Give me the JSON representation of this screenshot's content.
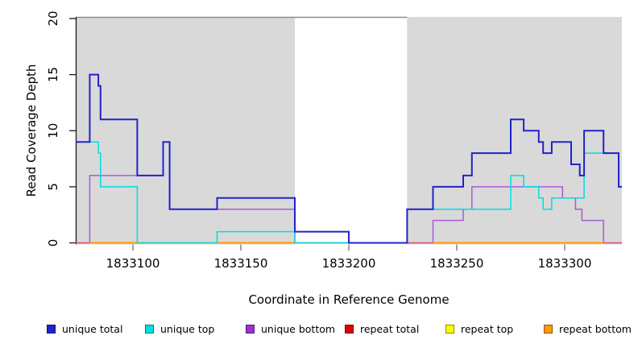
{
  "chart_data": {
    "type": "line",
    "subtype": "step-coverage",
    "title": "",
    "xlabel": "Coordinate in Reference Genome",
    "ylabel": "Read Coverage Depth",
    "x_range": [
      1833073.5,
      1833326.5
    ],
    "y_range": [
      0,
      20
    ],
    "x_ticks": [
      1833100,
      1833150,
      1833200,
      1833250,
      1833300
    ],
    "y_ticks": [
      0,
      5,
      10,
      15,
      20
    ],
    "grid": "off",
    "plot_background": "#ffffff",
    "shaded_regions": [
      {
        "from": 1833073.5,
        "to": 1833175,
        "color": "#d9d9d9"
      },
      {
        "from": 1833227,
        "to": 1833326.5,
        "color": "#d9d9d9"
      }
    ],
    "top_rule": {
      "from": 1833073.5,
      "to": 1833227,
      "color": "#8c8c8c"
    },
    "legend_position": "bottom",
    "draw_order": [
      "unique bottom",
      "repeat top",
      "repeat total",
      "repeat bottom",
      "unique top",
      "unique total"
    ],
    "series": [
      {
        "name": "unique total",
        "color": "#2222cc",
        "steps": [
          [
            1833073.5,
            9
          ],
          [
            1833080,
            15
          ],
          [
            1833084,
            14
          ],
          [
            1833085,
            11
          ],
          [
            1833102,
            6
          ],
          [
            1833114,
            9
          ],
          [
            1833117,
            3
          ],
          [
            1833139,
            4
          ],
          [
            1833175,
            1
          ],
          [
            1833200,
            0
          ],
          [
            1833227,
            3
          ],
          [
            1833239,
            5
          ],
          [
            1833253,
            6
          ],
          [
            1833257,
            8
          ],
          [
            1833275,
            11
          ],
          [
            1833281,
            10
          ],
          [
            1833288,
            9
          ],
          [
            1833290,
            8
          ],
          [
            1833294,
            9
          ],
          [
            1833303,
            7
          ],
          [
            1833307,
            6
          ],
          [
            1833309,
            10
          ],
          [
            1833318,
            8
          ],
          [
            1833325,
            5
          ]
        ]
      },
      {
        "name": "unique top",
        "color": "#00dde0",
        "steps": [
          [
            1833073.5,
            9
          ],
          [
            1833084,
            8
          ],
          [
            1833085,
            5
          ],
          [
            1833102,
            0
          ],
          [
            1833139,
            1
          ],
          [
            1833175,
            0
          ],
          [
            1833227,
            3
          ],
          [
            1833275,
            6
          ],
          [
            1833281,
            5
          ],
          [
            1833288,
            4
          ],
          [
            1833290,
            3
          ],
          [
            1833294,
            4
          ],
          [
            1833309,
            8
          ],
          [
            1833325,
            5
          ]
        ]
      },
      {
        "name": "unique bottom",
        "color": "#a85ad6",
        "legend_color": "#9933cc",
        "steps": [
          [
            1833073.5,
            0
          ],
          [
            1833080,
            6
          ],
          [
            1833114,
            9
          ],
          [
            1833117,
            3
          ],
          [
            1833175,
            0
          ],
          [
            1833239,
            2
          ],
          [
            1833253,
            3
          ],
          [
            1833257,
            5
          ],
          [
            1833299,
            4
          ],
          [
            1833305,
            3
          ],
          [
            1833308,
            2
          ],
          [
            1833318,
            0
          ]
        ]
      },
      {
        "name": "repeat total",
        "color": "#d4537c",
        "legend_color": "#dd0000",
        "steps": [
          [
            1833073.5,
            0
          ]
        ]
      },
      {
        "name": "repeat top",
        "color": "#f2e641",
        "legend_color": "#ffff00",
        "steps": [
          [
            1833073.5,
            0
          ]
        ]
      },
      {
        "name": "repeat bottom",
        "color": "#ff9900",
        "steps": [
          [
            1833073.5,
            null
          ],
          [
            1833080,
            0
          ],
          [
            1833175,
            null
          ],
          [
            1833239,
            0
          ],
          [
            1833318,
            null
          ]
        ]
      }
    ]
  }
}
